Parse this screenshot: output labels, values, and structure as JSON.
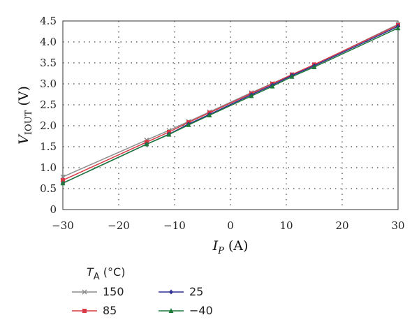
{
  "chart_data": {
    "type": "line",
    "xlabel": {
      "main": "I",
      "sub": "P",
      "unit": " (A)"
    },
    "ylabel": {
      "main": "V",
      "sub": "IOUT",
      "unit": " (V)"
    },
    "xlim": [
      -30,
      30
    ],
    "ylim": [
      0,
      4.5
    ],
    "xticks": [
      -30,
      -20,
      -10,
      0,
      10,
      20,
      30
    ],
    "xtick_labels": [
      "−30",
      "−20",
      "−10",
      "0",
      "10",
      "20",
      "30"
    ],
    "yticks": [
      0,
      0.5,
      1.0,
      1.5,
      2.0,
      2.5,
      3.0,
      3.5,
      4.0,
      4.5
    ],
    "ytick_labels": [
      "0",
      "0.5",
      "1.0",
      "1.5",
      "2.0",
      "2.5",
      "3.0",
      "3.5",
      "4.0",
      "4.5"
    ],
    "grid": true,
    "legend": {
      "title_main": "T",
      "title_sub": "A",
      "title_unit": " (°C)",
      "placement": "bottom"
    },
    "series": [
      {
        "name": "150",
        "color": "#8c8c8c",
        "marker": "x",
        "x": [
          -30,
          -15,
          -11,
          -7.5,
          -3.75,
          3.75,
          7.5,
          11,
          15,
          30
        ],
        "y": [
          0.78,
          1.66,
          1.89,
          2.1,
          2.33,
          2.79,
          3.01,
          3.22,
          3.45,
          4.42
        ]
      },
      {
        "name": "85",
        "color": "#d93a45",
        "marker": "square",
        "x": [
          -30,
          -15,
          -11,
          -7.5,
          -3.75,
          3.75,
          7.5,
          11,
          15,
          30
        ],
        "y": [
          0.7,
          1.61,
          1.85,
          2.08,
          2.31,
          2.77,
          3.0,
          3.22,
          3.46,
          4.4
        ]
      },
      {
        "name": "25",
        "color": "#2e3192",
        "marker": "diamond",
        "x": [
          -30,
          -15,
          -11,
          -7.5,
          -3.75,
          3.75,
          7.5,
          11,
          15,
          30
        ],
        "y": [
          0.63,
          1.56,
          1.8,
          2.04,
          2.27,
          2.74,
          2.97,
          3.2,
          3.43,
          4.37
        ]
      },
      {
        "name": "−40",
        "color": "#1f7a3a",
        "marker": "triangle",
        "x": [
          -30,
          -15,
          -11,
          -7.5,
          -3.75,
          3.75,
          7.5,
          11,
          15,
          30
        ],
        "y": [
          0.63,
          1.56,
          1.79,
          2.02,
          2.25,
          2.71,
          2.94,
          3.17,
          3.4,
          4.33
        ]
      }
    ]
  }
}
